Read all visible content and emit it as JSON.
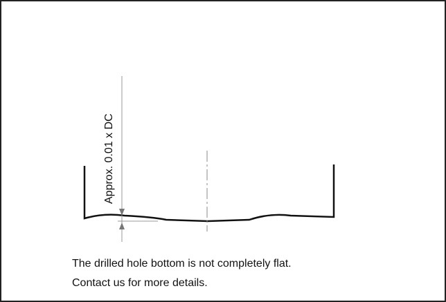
{
  "diagram": {
    "dimension_label": "Approx. 0.01 x DC",
    "caption": [
      "The drilled hole bottom is not completely flat.",
      "Contact us for more details."
    ]
  }
}
